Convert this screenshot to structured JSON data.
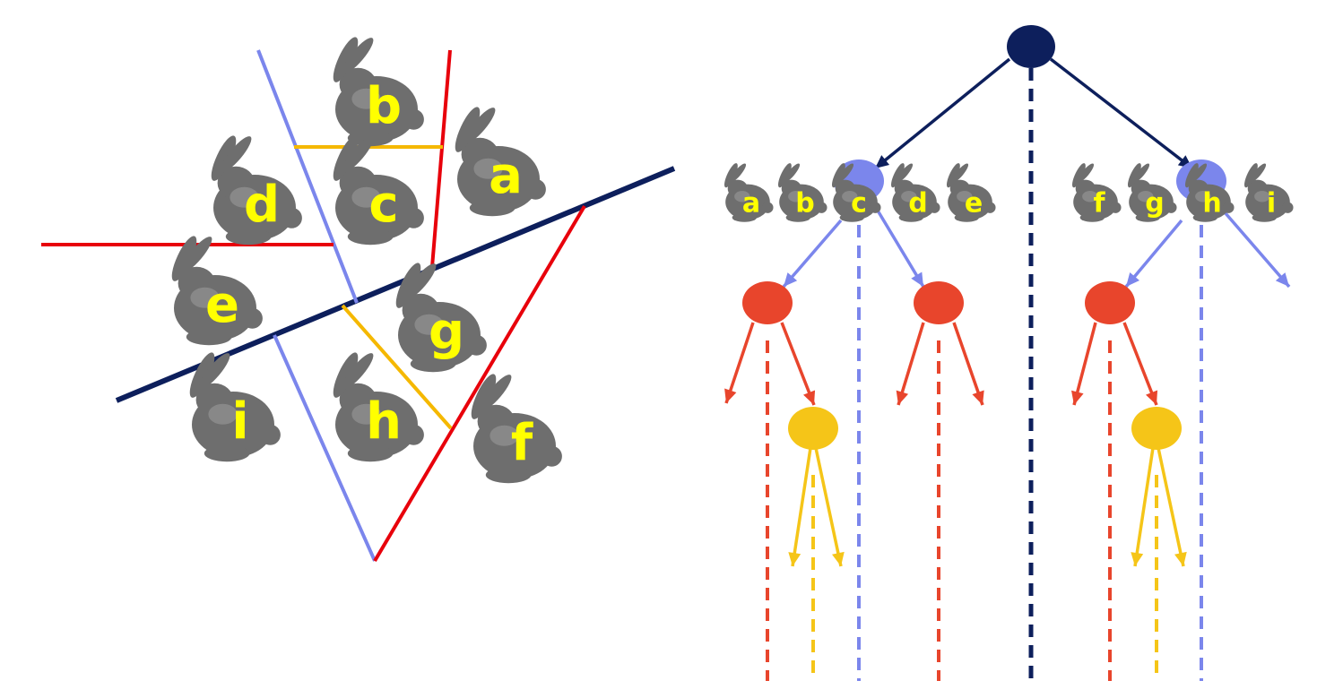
{
  "colors": {
    "root": "#0d1f5c",
    "level1": "#7b86ec",
    "level2": "#e8452c",
    "level3": "#f5c518",
    "label": "#ffff00",
    "bunny": "#6e6e6e",
    "split_red": "#e8000b",
    "split_orange": "#f5b800"
  },
  "left_panel": {
    "bunnies": [
      {
        "label": "a"
      },
      {
        "label": "b"
      },
      {
        "label": "c"
      },
      {
        "label": "d"
      },
      {
        "label": "e"
      },
      {
        "label": "f"
      },
      {
        "label": "g"
      },
      {
        "label": "h"
      },
      {
        "label": "i"
      }
    ]
  },
  "right_panel": {
    "left_group": [
      "a",
      "b",
      "c",
      "d",
      "e"
    ],
    "right_group": [
      "f",
      "g",
      "h",
      "i"
    ]
  }
}
